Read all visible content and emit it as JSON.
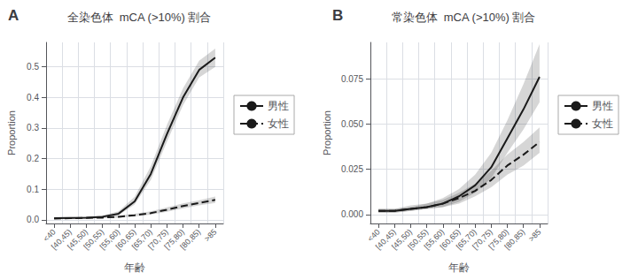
{
  "chart_data": [
    {
      "type": "line",
      "title": "全染色体  mCA (>10%) 割合",
      "annotation": "A",
      "xlabel": "年齢",
      "ylabel": "Proportion",
      "categories": [
        "<40",
        "[40,45)",
        "[45,50)",
        "[50,55)",
        "[55,60)",
        "[60,65)",
        "[65,70)",
        "[70,75)",
        "[75,80)",
        "[80,85)",
        ">85"
      ],
      "series": [
        {
          "name": "男性",
          "color": "#1a1a1a",
          "line_style": "solid",
          "values": [
            0.005,
            0.006,
            0.007,
            0.01,
            0.02,
            0.06,
            0.15,
            0.28,
            0.4,
            0.49,
            0.53
          ],
          "lo": [
            0.003,
            0.004,
            0.005,
            0.007,
            0.015,
            0.05,
            0.13,
            0.255,
            0.375,
            0.465,
            0.5
          ],
          "hi": [
            0.008,
            0.009,
            0.01,
            0.014,
            0.028,
            0.075,
            0.175,
            0.31,
            0.43,
            0.52,
            0.56
          ]
        },
        {
          "name": "女性",
          "color": "#1a1a1a",
          "line_style": "dashed",
          "values": [
            0.004,
            0.005,
            0.006,
            0.007,
            0.01,
            0.015,
            0.022,
            0.033,
            0.045,
            0.055,
            0.065
          ],
          "lo": [
            0.002,
            0.003,
            0.004,
            0.005,
            0.007,
            0.011,
            0.017,
            0.026,
            0.037,
            0.047,
            0.055
          ],
          "hi": [
            0.006,
            0.007,
            0.009,
            0.01,
            0.014,
            0.02,
            0.028,
            0.041,
            0.054,
            0.064,
            0.076
          ]
        }
      ],
      "ylim": [
        -0.012,
        0.58
      ],
      "yticks": [
        {
          "value": 0.0,
          "label": "0.0"
        },
        0.1,
        0.2,
        0.3,
        0.4,
        0.5
      ],
      "grid": true,
      "legend": "right"
    },
    {
      "type": "line",
      "title": "常染色体  mCA (>10%) 割合",
      "annotation": "B",
      "xlabel": "年齢",
      "ylabel": "Proportion",
      "categories": [
        "<40",
        "[40,45)",
        "[45,50)",
        "[50,55)",
        "[55,60)",
        "[60,65)",
        "[65,70)",
        "[70,75)",
        "[75,80)",
        "[80,85)",
        ">85"
      ],
      "series": [
        {
          "name": "男性",
          "color": "#1a1a1a",
          "line_style": "solid",
          "values": [
            0.002,
            0.002,
            0.003,
            0.004,
            0.006,
            0.01,
            0.016,
            0.026,
            0.042,
            0.058,
            0.076
          ],
          "lo": [
            0.001,
            0.001,
            0.002,
            0.003,
            0.004,
            0.007,
            0.012,
            0.02,
            0.034,
            0.047,
            0.062
          ],
          "hi": [
            0.003,
            0.003,
            0.005,
            0.006,
            0.009,
            0.014,
            0.022,
            0.034,
            0.052,
            0.072,
            0.094
          ]
        },
        {
          "name": "女性",
          "color": "#1a1a1a",
          "line_style": "dashed",
          "values": [
            0.002,
            0.002,
            0.003,
            0.004,
            0.006,
            0.009,
            0.013,
            0.019,
            0.027,
            0.033,
            0.04
          ],
          "lo": [
            0.001,
            0.001,
            0.002,
            0.003,
            0.004,
            0.006,
            0.01,
            0.015,
            0.022,
            0.027,
            0.034
          ],
          "hi": [
            0.003,
            0.003,
            0.004,
            0.006,
            0.008,
            0.012,
            0.017,
            0.024,
            0.033,
            0.04,
            0.048
          ]
        }
      ],
      "ylim": [
        -0.005,
        0.095
      ],
      "yticks": [
        {
          "value": 0.0,
          "label": "0.000"
        },
        0.025,
        {
          "value": 0.05,
          "label": "0.050"
        },
        0.075
      ],
      "grid": true,
      "legend": "right"
    }
  ]
}
